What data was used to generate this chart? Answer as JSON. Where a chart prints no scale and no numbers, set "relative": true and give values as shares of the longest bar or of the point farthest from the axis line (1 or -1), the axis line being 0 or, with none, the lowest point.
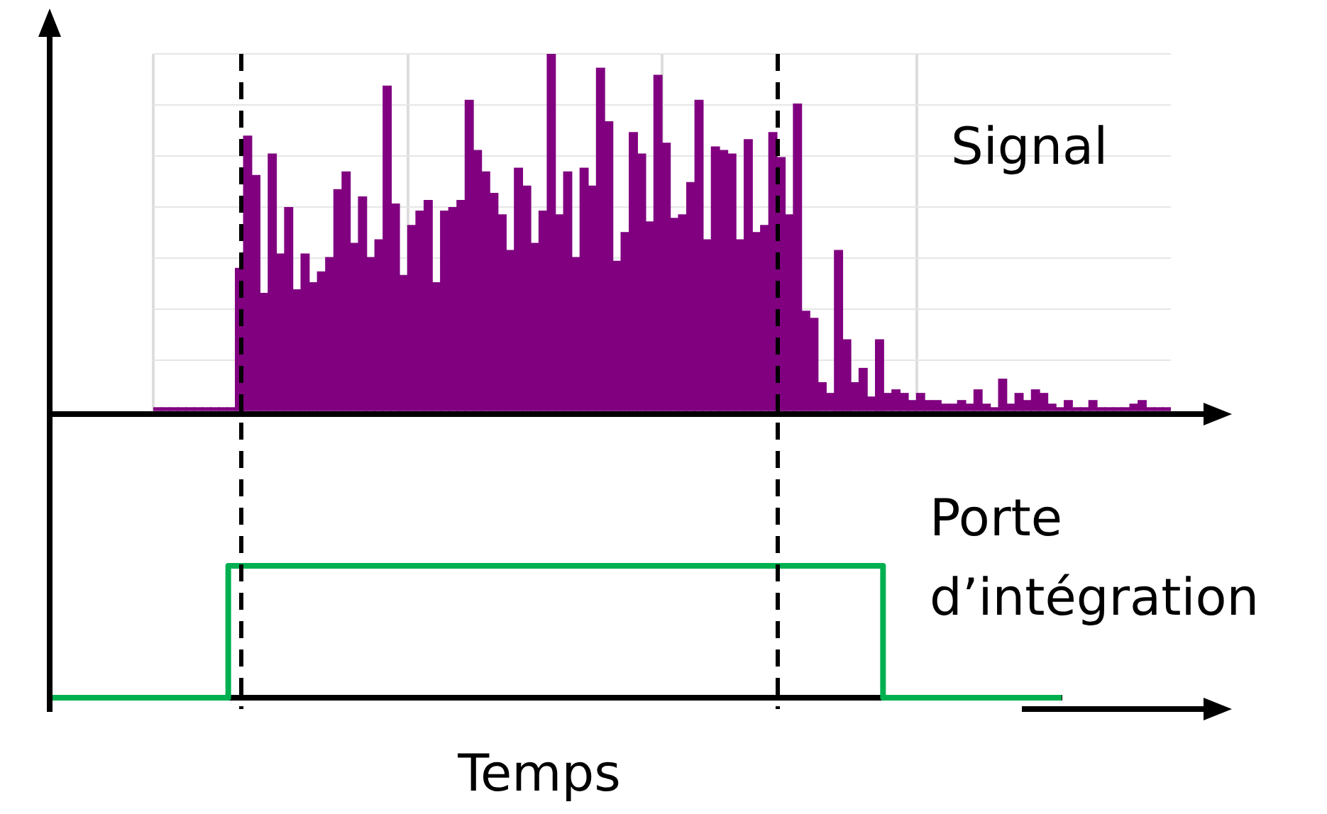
{
  "chart_data": [
    {
      "type": "bar",
      "relative": true,
      "grid": true,
      "legend": false,
      "categories": [
        null,
        null,
        null,
        null,
        null,
        null,
        null,
        null,
        null,
        null,
        null,
        null,
        null,
        null,
        null,
        null,
        null,
        null,
        null,
        null,
        null,
        null,
        null,
        null,
        null,
        null,
        null,
        null,
        null,
        null,
        null,
        null,
        null,
        null,
        null,
        null,
        null,
        null,
        null,
        null,
        null,
        null,
        null,
        null,
        null,
        null,
        null,
        null,
        null,
        null,
        null,
        null,
        null,
        null,
        null,
        null,
        null,
        null,
        null,
        null,
        null,
        null,
        null,
        null,
        null,
        null,
        null,
        null,
        null,
        null,
        null,
        null,
        null,
        null,
        null,
        null,
        null,
        null,
        null,
        null,
        null,
        null,
        null,
        null,
        null,
        null,
        null,
        null,
        null,
        null,
        null,
        null,
        null,
        null,
        null,
        null,
        null,
        null,
        null,
        null,
        null,
        null,
        null,
        null,
        null,
        null,
        null,
        null,
        null,
        null,
        null,
        null,
        null,
        null,
        null,
        null,
        null,
        null,
        null,
        null,
        null,
        null,
        null,
        null
      ],
      "series": [
        {
          "name": "Signal",
          "color": "#800080",
          "values": [
            0.01,
            0.01,
            0.01,
            0.01,
            0.01,
            0.01,
            0.01,
            0.01,
            0.01,
            0.01,
            0.4,
            0.77,
            0.66,
            0.33,
            0.72,
            0.44,
            0.57,
            0.34,
            0.44,
            0.36,
            0.39,
            0.43,
            0.62,
            0.67,
            0.47,
            0.6,
            0.43,
            0.48,
            0.91,
            0.58,
            0.38,
            0.52,
            0.56,
            0.59,
            0.36,
            0.56,
            0.57,
            0.59,
            0.87,
            0.73,
            0.67,
            0.61,
            0.55,
            0.45,
            0.68,
            0.63,
            0.47,
            0.56,
            1.0,
            0.55,
            0.67,
            0.43,
            0.68,
            0.63,
            0.96,
            0.81,
            0.42,
            0.5,
            0.78,
            0.72,
            0.53,
            0.94,
            0.75,
            0.54,
            0.55,
            0.64,
            0.87,
            0.48,
            0.74,
            0.73,
            0.72,
            0.48,
            0.76,
            0.5,
            0.52,
            0.78,
            0.71,
            0.55,
            0.86,
            0.28,
            0.26,
            0.08,
            0.05,
            0.45,
            0.2,
            0.08,
            0.12,
            0.04,
            0.2,
            0.05,
            0.06,
            0.05,
            0.03,
            0.05,
            0.03,
            0.03,
            0.02,
            0.02,
            0.03,
            0.02,
            0.06,
            0.02,
            0.01,
            0.09,
            0.02,
            0.05,
            0.03,
            0.06,
            0.05,
            0.02,
            0.01,
            0.03,
            0.01,
            0.01,
            0.03,
            0.01,
            0.01,
            0.01,
            0.01,
            0.02,
            0.03,
            0.01,
            0.01,
            0.01
          ]
        }
      ]
    },
    {
      "type": "step",
      "relative": true,
      "legend": false,
      "xlabel": "Temps",
      "categories": [
        null,
        null,
        null,
        null,
        null,
        null,
        null,
        null,
        null,
        null,
        null,
        null,
        null,
        null,
        null,
        null,
        null,
        null
      ],
      "series": [
        {
          "name": "Porte d’intégration",
          "color": "#00b050",
          "values": [
            0,
            0,
            0,
            1,
            1,
            1,
            1,
            1,
            1,
            1,
            1,
            1,
            1,
            1,
            0,
            0,
            0,
            0
          ]
        }
      ]
    }
  ]
}
